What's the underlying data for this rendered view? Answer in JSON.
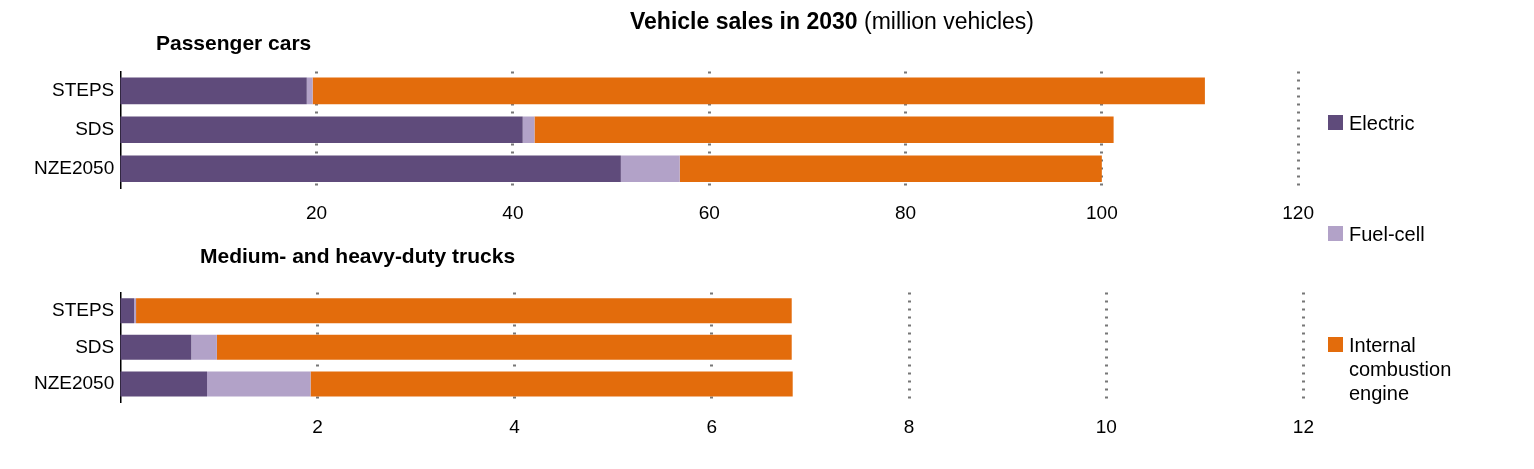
{
  "chart_data": [
    {
      "type": "bar",
      "orientation": "horizontal",
      "stacked": true,
      "title": "Vehicle sales in 2030",
      "subtitle": "(million vehicles)",
      "annotations": [
        "Passenger cars"
      ],
      "categories": [
        "STEPS",
        "SDS",
        "NZE2050"
      ],
      "series": [
        {
          "name": "Electric",
          "color": "#5f4b7b",
          "values": [
            19.0,
            41.0,
            51.0
          ]
        },
        {
          "name": "Fuel-cell",
          "color": "#b2a2c8",
          "values": [
            0.6,
            1.2,
            6.0
          ]
        },
        {
          "name": "Internal combustion engine",
          "color": "#e36c0c",
          "values": [
            90.9,
            59.0,
            43.0
          ]
        }
      ],
      "xlim": [
        0,
        120
      ],
      "xticks": [
        20,
        40,
        60,
        80,
        100,
        120
      ],
      "grid": "x",
      "legend": "right"
    },
    {
      "type": "bar",
      "orientation": "horizontal",
      "stacked": true,
      "title": "Medium- and heavy-duty trucks",
      "categories": [
        "STEPS",
        "SDS",
        "NZE2050"
      ],
      "series": [
        {
          "color": "#5f4b7b",
          "values": [
            0.14,
            0.72,
            0.88
          ]
        },
        {
          "color": "#b2a2c8",
          "values": [
            0.02,
            0.26,
            1.05
          ]
        },
        {
          "color": "#e36c0c",
          "values": [
            6.65,
            5.83,
            4.89
          ]
        }
      ],
      "xlim": [
        0,
        12
      ],
      "xticks": [
        2,
        4,
        6,
        8,
        10,
        12
      ],
      "grid": "x"
    }
  ]
}
